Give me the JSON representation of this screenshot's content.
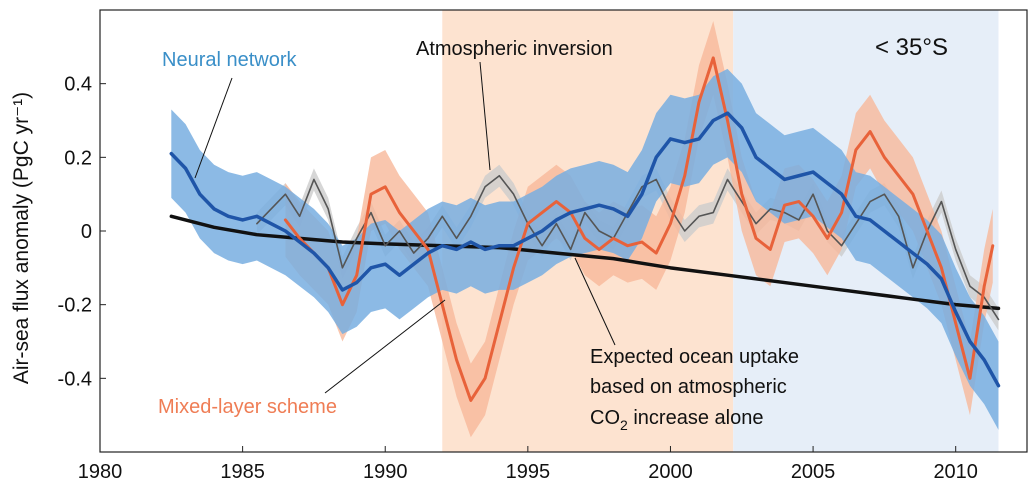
{
  "chart_data": {
    "type": "line",
    "region_label": "< 35°S",
    "ylabel": "Air-sea flux anomaly (PgC yr⁻¹)",
    "xlim": [
      1980,
      2012.5
    ],
    "ylim": [
      -0.6,
      0.6
    ],
    "x_ticks": [
      1980,
      1985,
      1990,
      1995,
      2000,
      2005,
      2010
    ],
    "y_ticks": [
      {
        "value": 0.4,
        "label": "0.4"
      },
      {
        "value": 0.2,
        "label": "0.2"
      },
      {
        "value": 0,
        "label": "0"
      },
      {
        "value": -0.2,
        "label": "-0.2"
      },
      {
        "value": -0.4,
        "label": "-0.4"
      }
    ],
    "shaded_periods": [
      {
        "start": 1992,
        "end": 2002.2,
        "color": "#fde3d0"
      },
      {
        "start": 2002.2,
        "end": 2011.5,
        "color": "#e6eef8"
      }
    ],
    "series": [
      {
        "name": "Neural network",
        "color": "#1f55a8",
        "band_color": "#78aee0",
        "x": [
          1982.5,
          1983,
          1983.5,
          1984,
          1984.5,
          1985,
          1985.5,
          1986,
          1986.5,
          1987,
          1987.5,
          1988,
          1988.5,
          1989,
          1989.5,
          1990,
          1990.5,
          1991,
          1991.5,
          1992,
          1992.5,
          1993,
          1993.5,
          1994,
          1994.5,
          1995,
          1995.5,
          1996,
          1996.5,
          1997,
          1997.5,
          1998,
          1998.5,
          1999,
          1999.5,
          2000,
          2000.5,
          2001,
          2001.5,
          2002,
          2002.5,
          2003,
          2003.5,
          2004,
          2004.5,
          2005,
          2005.5,
          2006,
          2006.5,
          2007,
          2007.5,
          2008,
          2008.5,
          2009,
          2009.5,
          2010,
          2010.5,
          2011,
          2011.5
        ],
        "values": [
          0.21,
          0.17,
          0.1,
          0.06,
          0.04,
          0.03,
          0.04,
          0.02,
          0.0,
          -0.03,
          -0.06,
          -0.1,
          -0.16,
          -0.14,
          -0.1,
          -0.09,
          -0.12,
          -0.09,
          -0.06,
          -0.04,
          -0.05,
          -0.03,
          -0.05,
          -0.04,
          -0.04,
          -0.02,
          0.0,
          0.03,
          0.05,
          0.06,
          0.07,
          0.06,
          0.04,
          0.1,
          0.2,
          0.25,
          0.24,
          0.25,
          0.3,
          0.32,
          0.28,
          0.2,
          0.17,
          0.14,
          0.15,
          0.16,
          0.13,
          0.1,
          0.04,
          0.03,
          0.0,
          -0.03,
          -0.06,
          -0.09,
          -0.13,
          -0.22,
          -0.3,
          -0.35,
          -0.42
        ],
        "band_halfwidth": 0.12
      },
      {
        "name": "Mixed-layer scheme",
        "color": "#e8623a",
        "band_color": "#f8b89a",
        "x": [
          1986.5,
          1987,
          1987.5,
          1988,
          1988.5,
          1989,
          1989.5,
          1990,
          1990.5,
          1991,
          1991.5,
          1992,
          1992.5,
          1993,
          1993.5,
          1994,
          1994.5,
          1995,
          1995.5,
          1996,
          1996.5,
          1997,
          1997.5,
          1998,
          1998.5,
          1999,
          1999.5,
          2000,
          2000.5,
          2001,
          2001.5,
          2002,
          2002.5,
          2003,
          2003.5,
          2004,
          2004.5,
          2005,
          2005.5,
          2006,
          2006.5,
          2007,
          2007.5,
          2008,
          2008.5,
          2009,
          2009.5,
          2010,
          2010.5,
          2011,
          2011.3
        ],
        "values": [
          0.03,
          -0.02,
          -0.06,
          -0.1,
          -0.2,
          -0.12,
          0.1,
          0.12,
          0.05,
          0.0,
          -0.05,
          -0.2,
          -0.35,
          -0.46,
          -0.4,
          -0.25,
          -0.1,
          0.02,
          0.05,
          0.08,
          0.05,
          -0.02,
          -0.05,
          -0.02,
          -0.04,
          -0.03,
          -0.06,
          0.02,
          0.15,
          0.35,
          0.47,
          0.3,
          0.1,
          -0.02,
          -0.05,
          0.07,
          0.08,
          0.04,
          -0.02,
          0.05,
          0.22,
          0.27,
          0.2,
          0.15,
          0.1,
          0.0,
          -0.1,
          -0.25,
          -0.4,
          -0.15,
          -0.04
        ],
        "band_halfwidth": 0.1
      },
      {
        "name": "Atmospheric inversion",
        "color": "#555555",
        "band_color": "#cccccc",
        "x": [
          1985.5,
          1986,
          1986.5,
          1987,
          1987.5,
          1988,
          1988.5,
          1989,
          1989.5,
          1990,
          1990.5,
          1991,
          1991.5,
          1992,
          1992.5,
          1993,
          1993.5,
          1994,
          1994.5,
          1995,
          1995.5,
          1996,
          1996.5,
          1997,
          1997.5,
          1998,
          1998.5,
          1999,
          1999.5,
          2000,
          2000.5,
          2001,
          2001.5,
          2002,
          2002.5,
          2003,
          2003.5,
          2004,
          2004.5,
          2005,
          2005.5,
          2006,
          2006.5,
          2007,
          2007.5,
          2008,
          2008.5,
          2009,
          2009.5,
          2010,
          2010.5,
          2011,
          2011.5
        ],
        "values": [
          0.02,
          0.06,
          0.1,
          0.04,
          0.14,
          0.06,
          -0.1,
          -0.02,
          0.05,
          -0.04,
          0.0,
          -0.06,
          -0.02,
          0.04,
          -0.02,
          0.04,
          0.12,
          0.15,
          0.1,
          0.02,
          -0.04,
          0.02,
          -0.05,
          0.05,
          0.0,
          -0.02,
          0.05,
          0.12,
          0.14,
          0.06,
          0.0,
          0.04,
          0.05,
          0.14,
          0.08,
          0.02,
          0.06,
          0.05,
          0.03,
          0.1,
          0.0,
          -0.04,
          0.02,
          0.08,
          0.1,
          0.04,
          -0.1,
          0.0,
          0.08,
          -0.05,
          -0.15,
          -0.18,
          -0.24
        ],
        "band_halfwidth": 0.03
      },
      {
        "name": "Expected ocean uptake based on atmospheric CO₂ increase alone",
        "color": "#111111",
        "x": [
          1982.5,
          1984,
          1985.5,
          1987,
          1988.5,
          1990,
          1992,
          1994,
          1996,
          1998,
          2000,
          2002,
          2004,
          2006,
          2008,
          2010,
          2011.5
        ],
        "values": [
          0.04,
          0.01,
          -0.01,
          -0.02,
          -0.03,
          -0.035,
          -0.04,
          -0.045,
          -0.06,
          -0.075,
          -0.1,
          -0.12,
          -0.14,
          -0.16,
          -0.18,
          -0.2,
          -0.21
        ]
      }
    ],
    "annotations": [
      {
        "id": "nn",
        "text": "Neural network",
        "color": "#3a8fc8"
      },
      {
        "id": "inv",
        "text": "Atmospheric inversion",
        "color": "#111111"
      },
      {
        "id": "mls",
        "text": "Mixed-layer scheme",
        "color": "#ef7d55"
      },
      {
        "id": "exp1",
        "text": "Expected ocean uptake",
        "color": "#111111"
      },
      {
        "id": "exp2",
        "text": "based on atmospheric",
        "color": "#111111"
      },
      {
        "id": "exp3a",
        "text": "CO",
        "color": "#111111"
      },
      {
        "id": "exp3sub",
        "text": "2",
        "color": "#111111"
      },
      {
        "id": "exp3b",
        "text": " increase alone",
        "color": "#111111"
      }
    ]
  }
}
